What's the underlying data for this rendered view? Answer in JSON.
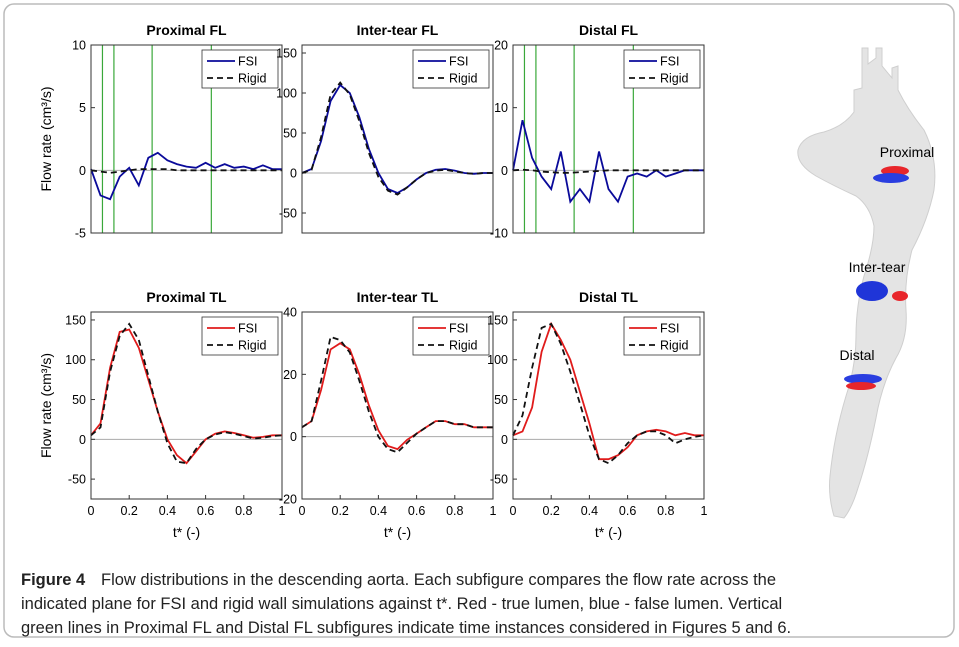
{
  "chart_data": [
    {
      "type": "line",
      "title": "Proximal FL",
      "ylabel": "Flow rate (cm³/s)",
      "ylim": [
        -5,
        10
      ],
      "yticks": [
        -5,
        0,
        5,
        10
      ],
      "xlim": [
        0,
        1
      ],
      "x": [
        0,
        0.05,
        0.1,
        0.15,
        0.2,
        0.25,
        0.3,
        0.35,
        0.4,
        0.45,
        0.5,
        0.55,
        0.6,
        0.65,
        0.7,
        0.75,
        0.8,
        0.85,
        0.9,
        0.95,
        1
      ],
      "vlines": [
        0.06,
        0.12,
        0.32,
        0.63
      ],
      "vline_color": "#3aa83a",
      "series": [
        {
          "name": "FSI",
          "color": "#0a0a9a",
          "linestyle": "solid",
          "values": [
            0.1,
            -2,
            -2.3,
            -0.5,
            0.2,
            -1.2,
            1,
            1.4,
            0.8,
            0.5,
            0.3,
            0.2,
            0.6,
            0.2,
            0.5,
            0.2,
            0.3,
            0.1,
            0.4,
            0.1,
            0.1
          ]
        },
        {
          "name": "Rigid",
          "color": "#111111",
          "linestyle": "dashed",
          "values": [
            0,
            -0.1,
            -0.2,
            -0.1,
            0,
            0.1,
            0.1,
            0.1,
            0.1,
            0,
            0,
            0,
            0,
            0,
            0,
            0,
            0,
            0,
            0,
            0,
            0
          ]
        }
      ]
    },
    {
      "type": "line",
      "title": "Inter-tear FL",
      "ylim": [
        -75,
        160
      ],
      "yticks": [
        -50,
        0,
        50,
        100,
        150
      ],
      "xlim": [
        0,
        1
      ],
      "x": [
        0,
        0.05,
        0.1,
        0.15,
        0.2,
        0.25,
        0.3,
        0.35,
        0.4,
        0.45,
        0.5,
        0.55,
        0.6,
        0.65,
        0.7,
        0.75,
        0.8,
        0.85,
        0.9,
        0.95,
        1
      ],
      "series": [
        {
          "name": "FSI",
          "color": "#0a0a9a",
          "linestyle": "solid",
          "values": [
            0,
            5,
            40,
            90,
            110,
            100,
            70,
            30,
            0,
            -20,
            -25,
            -18,
            -8,
            0,
            4,
            5,
            3,
            0,
            -1,
            0,
            0
          ]
        },
        {
          "name": "Rigid",
          "color": "#111111",
          "linestyle": "dashed",
          "values": [
            0,
            4,
            45,
            98,
            113,
            98,
            65,
            25,
            -5,
            -22,
            -27,
            -18,
            -8,
            0,
            3,
            4,
            2,
            0,
            -1,
            0,
            0
          ]
        }
      ]
    },
    {
      "type": "line",
      "title": "Distal FL",
      "ylim": [
        -10,
        20
      ],
      "yticks": [
        -10,
        0,
        10,
        20
      ],
      "xlim": [
        0,
        1
      ],
      "x": [
        0,
        0.05,
        0.1,
        0.15,
        0.2,
        0.25,
        0.3,
        0.35,
        0.4,
        0.45,
        0.5,
        0.55,
        0.6,
        0.65,
        0.7,
        0.75,
        0.8,
        0.85,
        0.9,
        0.95,
        1
      ],
      "vlines": [
        0.06,
        0.12,
        0.32,
        0.63
      ],
      "vline_color": "#3aa83a",
      "series": [
        {
          "name": "FSI",
          "color": "#0a0a9a",
          "linestyle": "solid",
          "values": [
            0,
            8,
            2,
            -1,
            -3,
            3,
            -5,
            -3,
            -5,
            3,
            -3,
            -5,
            -1,
            -0.5,
            -1,
            0,
            -1,
            -0.5,
            0,
            0,
            0
          ]
        },
        {
          "name": "Rigid",
          "color": "#111111",
          "linestyle": "dashed",
          "values": [
            0,
            0.1,
            0,
            -0.2,
            -0.3,
            -0.4,
            -0.4,
            -0.3,
            -0.2,
            -0.1,
            0,
            0,
            0,
            0,
            0,
            0,
            0,
            0,
            0,
            0,
            0
          ]
        }
      ]
    },
    {
      "type": "line",
      "title": "Proximal TL",
      "ylabel": "Flow rate (cm³/s)",
      "xlabel": "t* (-)",
      "ylim": [
        -75,
        160
      ],
      "yticks": [
        -50,
        0,
        50,
        100,
        150
      ],
      "xlim": [
        0,
        1
      ],
      "xticks": [
        0,
        0.2,
        0.4,
        0.6,
        0.8,
        1
      ],
      "x": [
        0,
        0.05,
        0.1,
        0.15,
        0.2,
        0.25,
        0.3,
        0.35,
        0.4,
        0.45,
        0.5,
        0.55,
        0.6,
        0.65,
        0.7,
        0.75,
        0.8,
        0.85,
        0.9,
        0.95,
        1
      ],
      "series": [
        {
          "name": "FSI",
          "color": "#e01b1b",
          "linestyle": "solid",
          "values": [
            5,
            20,
            90,
            135,
            138,
            115,
            75,
            35,
            0,
            -20,
            -30,
            -15,
            0,
            7,
            10,
            8,
            5,
            2,
            3,
            5,
            5
          ]
        },
        {
          "name": "Rigid",
          "color": "#111111",
          "linestyle": "dashed",
          "values": [
            5,
            15,
            85,
            130,
            145,
            125,
            80,
            35,
            -5,
            -28,
            -30,
            -12,
            0,
            6,
            9,
            7,
            4,
            1,
            2,
            4,
            5
          ]
        }
      ]
    },
    {
      "type": "line",
      "title": "Inter-tear TL",
      "xlabel": "t* (-)",
      "ylim": [
        -20,
        40
      ],
      "yticks": [
        -20,
        0,
        20,
        40
      ],
      "xlim": [
        0,
        1
      ],
      "xticks": [
        0,
        0.2,
        0.4,
        0.6,
        0.8,
        1
      ],
      "x": [
        0,
        0.05,
        0.1,
        0.15,
        0.2,
        0.25,
        0.3,
        0.35,
        0.4,
        0.45,
        0.5,
        0.55,
        0.6,
        0.65,
        0.7,
        0.75,
        0.8,
        0.85,
        0.9,
        0.95,
        1
      ],
      "series": [
        {
          "name": "FSI",
          "color": "#e01b1b",
          "linestyle": "solid",
          "values": [
            3,
            5,
            15,
            28,
            30,
            28,
            20,
            10,
            2,
            -3,
            -4,
            -1,
            1,
            3,
            5,
            5,
            4,
            4,
            3,
            3,
            3
          ]
        },
        {
          "name": "Rigid",
          "color": "#111111",
          "linestyle": "dashed",
          "values": [
            3,
            5,
            18,
            32,
            31,
            27,
            18,
            8,
            0,
            -4,
            -5,
            -2,
            1,
            3,
            5,
            5,
            4,
            4,
            3,
            3,
            3
          ]
        }
      ]
    },
    {
      "type": "line",
      "title": "Distal TL",
      "xlabel": "t* (-)",
      "ylim": [
        -75,
        160
      ],
      "yticks": [
        -50,
        0,
        50,
        100,
        150
      ],
      "xlim": [
        0,
        1
      ],
      "xticks": [
        0,
        0.2,
        0.4,
        0.6,
        0.8,
        1
      ],
      "x": [
        0,
        0.05,
        0.1,
        0.15,
        0.2,
        0.25,
        0.3,
        0.35,
        0.4,
        0.45,
        0.5,
        0.55,
        0.6,
        0.65,
        0.7,
        0.75,
        0.8,
        0.85,
        0.9,
        0.95,
        1
      ],
      "series": [
        {
          "name": "FSI",
          "color": "#e01b1b",
          "linestyle": "solid",
          "values": [
            5,
            10,
            40,
            110,
            145,
            125,
            100,
            60,
            20,
            -25,
            -25,
            -20,
            -10,
            5,
            10,
            12,
            10,
            5,
            8,
            5,
            5
          ]
        },
        {
          "name": "Rigid",
          "color": "#111111",
          "linestyle": "dashed",
          "values": [
            5,
            30,
            90,
            140,
            145,
            120,
            85,
            45,
            5,
            -25,
            -30,
            -20,
            -5,
            5,
            10,
            10,
            5,
            -5,
            0,
            3,
            5
          ]
        }
      ]
    }
  ],
  "figure": {
    "labels": [
      "Proximal",
      "Inter-tear",
      "Distal"
    ],
    "caption": {
      "label": "Figure 4",
      "lines": [
        "Flow distributions in the descending aorta. Each subfigure compares the flow rate across the",
        "indicated plane for FSI and rigid wall simulations against t*. Red - true lumen, blue - false lumen. Vertical",
        "green lines in Proximal FL and Distal FL subfigures indicate time instances considered in Figures 5 and 6."
      ]
    }
  }
}
